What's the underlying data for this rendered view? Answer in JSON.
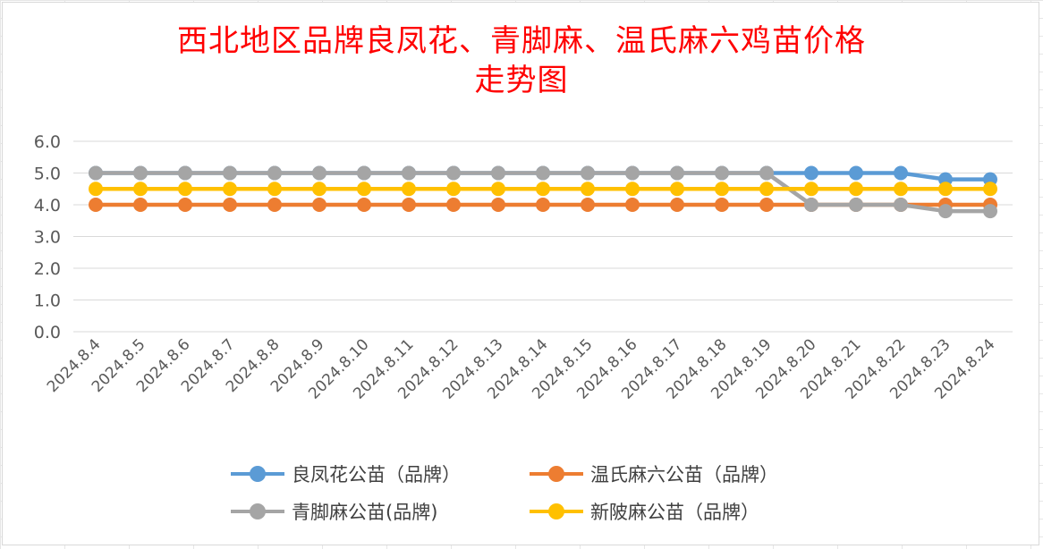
{
  "chart_data": {
    "type": "line",
    "title_line1": "西北地区品牌良凤花、青脚麻、温氏麻六鸡苗价格",
    "title_line2": "走势图",
    "categories": [
      "2024.8.4",
      "2024.8.5",
      "2024.8.6",
      "2024.8.7",
      "2024.8.8",
      "2024.8.9",
      "2024.8.10",
      "2024.8.11",
      "2024.8.12",
      "2024.8.13",
      "2024.8.14",
      "2024.8.15",
      "2024.8.16",
      "2024.8.17",
      "2024.8.18",
      "2024.8.19",
      "2024.8.20",
      "2024.8.21",
      "2024.8.22",
      "2024.8.23",
      "2024.8.24"
    ],
    "y_ticks": [
      "0.0",
      "1.0",
      "2.0",
      "3.0",
      "4.0",
      "5.0",
      "6.0"
    ],
    "ylim": [
      0,
      6
    ],
    "grid": true,
    "legend_position": "bottom",
    "series": [
      {
        "name": "良凤花公苗（品牌）",
        "color": "#5b9bd5",
        "values": [
          5,
          5,
          5,
          5,
          5,
          5,
          5,
          5,
          5,
          5,
          5,
          5,
          5,
          5,
          5,
          5,
          5,
          5,
          5,
          4.8,
          4.8
        ]
      },
      {
        "name": "温氏麻六公苗（品牌）",
        "color": "#ed7d31",
        "values": [
          4,
          4,
          4,
          4,
          4,
          4,
          4,
          4,
          4,
          4,
          4,
          4,
          4,
          4,
          4,
          4,
          4,
          4,
          4,
          4,
          4
        ]
      },
      {
        "name": "青脚麻公苗(品牌)",
        "color": "#a5a5a5",
        "values": [
          5,
          5,
          5,
          5,
          5,
          5,
          5,
          5,
          5,
          5,
          5,
          5,
          5,
          5,
          5,
          5,
          4,
          4,
          4,
          3.8,
          3.8
        ]
      },
      {
        "name": "新陂麻公苗（品牌）",
        "color": "#ffc000",
        "values": [
          4.5,
          4.5,
          4.5,
          4.5,
          4.5,
          4.5,
          4.5,
          4.5,
          4.5,
          4.5,
          4.5,
          4.5,
          4.5,
          4.5,
          4.5,
          4.5,
          4.5,
          4.5,
          4.5,
          4.5,
          4.5
        ]
      }
    ]
  }
}
